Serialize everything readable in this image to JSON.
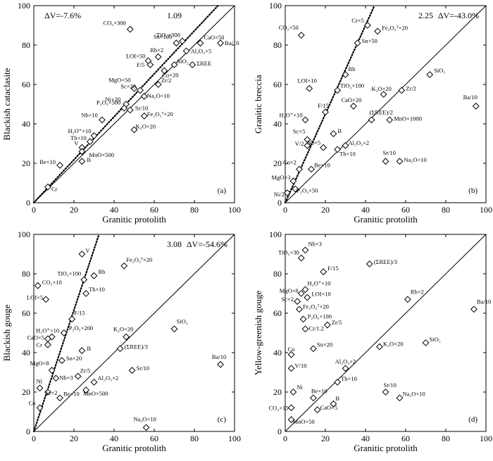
{
  "figure": {
    "axis_range": [
      0,
      100
    ],
    "ticks": [
      0,
      20,
      40,
      60,
      80,
      100
    ]
  },
  "chart_data": [
    {
      "type": "scatter",
      "tag": "(a)",
      "xlabel": "Granitic protolith",
      "ylabel": "Blackish cataclasite",
      "xlim": [
        0,
        100
      ],
      "ylim": [
        0,
        100
      ],
      "delta_v": "ΔV=-7.6%",
      "slope_label": "1.09",
      "isocon_slope": 1.09,
      "stat_pos": "top-left",
      "slope_pos": "top-center",
      "points": [
        {
          "x": 48,
          "y": 88,
          "label": "CO₂×300",
          "lx": -6,
          "ly": -6,
          "la": "end"
        },
        {
          "x": 74,
          "y": 82,
          "label": "TiO₂×300",
          "lx": -3,
          "ly": -6,
          "la": "end"
        },
        {
          "x": 71,
          "y": 81,
          "label": "Sn×100",
          "lx": -6,
          "ly": -6,
          "la": "end"
        },
        {
          "x": 83,
          "y": 81,
          "label": "CaO×50",
          "lx": 5,
          "ly": -5,
          "la": "start"
        },
        {
          "x": 93,
          "y": 81,
          "label": "Ba/10",
          "lx": 6,
          "ly": 3,
          "la": "start"
        },
        {
          "x": 76,
          "y": 77,
          "label": "Al₂O₃×5",
          "lx": 6,
          "ly": 3,
          "la": "start"
        },
        {
          "x": 62,
          "y": 74,
          "label": "Rb×2",
          "lx": -2,
          "ly": -7,
          "la": "middle"
        },
        {
          "x": 57,
          "y": 72,
          "label": "LOI×50",
          "lx": -4,
          "ly": -4,
          "la": "end"
        },
        {
          "x": 58,
          "y": 70,
          "label": "F/5",
          "lx": -8,
          "ly": 3,
          "la": "end"
        },
        {
          "x": 70,
          "y": 70,
          "label": "SiO₂",
          "lx": 4,
          "ly": -2,
          "la": "start"
        },
        {
          "x": 79,
          "y": 70,
          "label": "ΣREE",
          "lx": 6,
          "ly": 1,
          "la": "start"
        },
        {
          "x": 65,
          "y": 67,
          "label": "Co×20",
          "lx": -3,
          "ly": 9,
          "la": "start"
        },
        {
          "x": 50,
          "y": 58,
          "label": "MgO×50",
          "lx": -5,
          "ly": -9,
          "la": "end"
        },
        {
          "x": 53,
          "y": 57,
          "label": "Sc×20",
          "lx": -6,
          "ly": -3,
          "la": "end"
        },
        {
          "x": 62,
          "y": 60,
          "label": "Zr/2",
          "lx": 4,
          "ly": -3,
          "la": "start"
        },
        {
          "x": 55,
          "y": 54,
          "label": "Na₂O×10",
          "lx": 4,
          "ly": 2,
          "la": "start"
        },
        {
          "x": 46,
          "y": 50,
          "label": "Ni×20",
          "lx": -8,
          "ly": -4,
          "la": "end"
        },
        {
          "x": 45,
          "y": 48,
          "label": "P₂O₅×500",
          "lx": -5,
          "ly": -5,
          "la": "end"
        },
        {
          "x": 48,
          "y": 47,
          "label": "Sr/10",
          "lx": 7,
          "ly": 0,
          "la": "start"
        },
        {
          "x": 55,
          "y": 44,
          "label": "Fe₂O₃ᵀ×20",
          "lx": 4,
          "ly": 0,
          "la": "start"
        },
        {
          "x": 34,
          "y": 42,
          "label": "Nb×10",
          "lx": -6,
          "ly": -4,
          "la": "end"
        },
        {
          "x": 50,
          "y": 37,
          "label": "K₂O×20",
          "lx": 2,
          "ly": -2,
          "la": "start"
        },
        {
          "x": 30,
          "y": 34,
          "label": "H₂O⁺×10",
          "lx": -4,
          "ly": -4,
          "la": "end"
        },
        {
          "x": 28,
          "y": 31,
          "label": "Th×10",
          "lx": -5,
          "ly": -2,
          "la": "end"
        },
        {
          "x": 24,
          "y": 28,
          "label": "V",
          "lx": -5,
          "ly": -3,
          "la": "end"
        },
        {
          "x": 24,
          "y": 26,
          "label": "MnO×500",
          "lx": 10,
          "ly": 8,
          "la": "start"
        },
        {
          "x": 24,
          "y": 21,
          "label": "B",
          "lx": 7,
          "ly": 1,
          "la": "start"
        },
        {
          "x": 13,
          "y": 19,
          "label": "Be×10",
          "lx": -6,
          "ly": -2,
          "la": "end"
        },
        {
          "x": 7,
          "y": 8,
          "label": "Cr",
          "lx": 5,
          "ly": 6,
          "la": "start"
        }
      ]
    },
    {
      "type": "scatter",
      "tag": "(b)",
      "xlabel": "Granitic protolith",
      "ylabel": "Granitic breccia",
      "xlim": [
        0,
        100
      ],
      "ylim": [
        0,
        100
      ],
      "delta_v": "ΔV=-43.0%",
      "slope_label": "2.25",
      "isocon_slope": 2.25,
      "stat_pos": "top-right",
      "slope_pos": "top-center",
      "points": [
        {
          "x": 8,
          "y": 85,
          "label": "CO₂×50",
          "lx": -4,
          "ly": -8,
          "la": "end"
        },
        {
          "x": 41,
          "y": 90,
          "label": "Cr×5",
          "lx": -5,
          "ly": -4,
          "la": "end"
        },
        {
          "x": 46,
          "y": 87,
          "label": "Fe₂O₃ᵀ×20",
          "lx": 6,
          "ly": -2,
          "la": "start"
        },
        {
          "x": 36,
          "y": 81,
          "label": "Sn×50",
          "lx": 6,
          "ly": 0,
          "la": "start"
        },
        {
          "x": 30,
          "y": 65,
          "label": "Rb",
          "lx": 4,
          "ly": -5,
          "la": "start"
        },
        {
          "x": 12,
          "y": 58,
          "label": "LOI×10",
          "lx": -3,
          "ly": -8,
          "la": "middle"
        },
        {
          "x": 26,
          "y": 57,
          "label": "TiO₂×100",
          "lx": 4,
          "ly": -4,
          "la": "start"
        },
        {
          "x": 72,
          "y": 65,
          "label": "SiO₂",
          "lx": 6,
          "ly": -3,
          "la": "start"
        },
        {
          "x": 49,
          "y": 55,
          "label": "K₂O×20",
          "lx": -3,
          "ly": -5,
          "la": "middle"
        },
        {
          "x": 58,
          "y": 57,
          "label": "Zr/2",
          "lx": 6,
          "ly": 0,
          "la": "start"
        },
        {
          "x": 34,
          "y": 49,
          "label": "CaO×20",
          "lx": -3,
          "ly": -6,
          "la": "middle"
        },
        {
          "x": 20,
          "y": 46,
          "label": "F/15",
          "lx": -3,
          "ly": -6,
          "la": "middle"
        },
        {
          "x": 10,
          "y": 42,
          "label": "H₂O⁺×10",
          "lx": -4,
          "ly": -4,
          "la": "end"
        },
        {
          "x": 43,
          "y": 42,
          "label": "(ΣREE)/2",
          "lx": -3,
          "ly": -8,
          "la": "start"
        },
        {
          "x": 52,
          "y": 42,
          "label": "MnO×1000",
          "lx": 6,
          "ly": 1,
          "la": "start"
        },
        {
          "x": 95,
          "y": 49,
          "label": "Ba/10",
          "lx": -8,
          "ly": -10,
          "la": "middle"
        },
        {
          "x": 11,
          "y": 32,
          "label": "Sc×5",
          "lx": -3,
          "ly": -9,
          "la": "end"
        },
        {
          "x": 11,
          "y": 29,
          "label": "V/2",
          "lx": -5,
          "ly": 0,
          "la": "end"
        },
        {
          "x": 24,
          "y": 35,
          "label": "B",
          "lx": 6,
          "ly": -1,
          "la": "start"
        },
        {
          "x": 19,
          "y": 28,
          "label": "Nb×5",
          "lx": -4,
          "ly": -4,
          "la": "end"
        },
        {
          "x": 30,
          "y": 29,
          "label": "Al₂O₃×2",
          "lx": 4,
          "ly": -1,
          "la": "start"
        },
        {
          "x": 26,
          "y": 27,
          "label": "Th×10",
          "lx": 3,
          "ly": 9,
          "la": "start"
        },
        {
          "x": 13,
          "y": 17,
          "label": "Be×10",
          "lx": 4,
          "ly": -3,
          "la": "start"
        },
        {
          "x": 7,
          "y": 17,
          "label": "Co×2",
          "lx": -4,
          "ly": -7,
          "la": "end"
        },
        {
          "x": 50,
          "y": 21,
          "label": "Sr/10",
          "lx": -4,
          "ly": -9,
          "la": "start"
        },
        {
          "x": 57,
          "y": 21,
          "label": "Na₂O×10",
          "lx": 6,
          "ly": 1,
          "la": "start"
        },
        {
          "x": 4,
          "y": 11,
          "label": "MgO×3",
          "lx": -4,
          "ly": -2,
          "la": "end"
        },
        {
          "x": 5,
          "y": 7,
          "label": "P₂O₅×50",
          "lx": 2,
          "ly": 5,
          "la": "start"
        },
        {
          "x": 1,
          "y": 5,
          "label": "Ni/2",
          "lx": -4,
          "ly": 5,
          "la": "end"
        }
      ]
    },
    {
      "type": "scatter",
      "tag": "(c)",
      "xlabel": "Granitic protolith",
      "ylabel": "Blackish gouge",
      "xlim": [
        0,
        100
      ],
      "ylim": [
        0,
        100
      ],
      "delta_v": "ΔV=-54.6%",
      "slope_label": "3.08",
      "isocon_slope": 3.08,
      "stat_pos": "top-right",
      "slope_pos": "top-center",
      "points": [
        {
          "x": 24,
          "y": 90,
          "label": "V",
          "lx": 5,
          "ly": -2,
          "la": "start"
        },
        {
          "x": 45,
          "y": 84,
          "label": "Fe₂O₃ᵀ×20",
          "lx": 3,
          "ly": -6,
          "la": "start"
        },
        {
          "x": 25,
          "y": 77,
          "label": "TiO₂×100",
          "lx": -4,
          "ly": -6,
          "la": "end"
        },
        {
          "x": 30,
          "y": 79,
          "label": "Rb",
          "lx": 6,
          "ly": -3,
          "la": "start"
        },
        {
          "x": 2,
          "y": 74,
          "label": "CO₂×10",
          "lx": 6,
          "ly": -2,
          "la": "start"
        },
        {
          "x": 26,
          "y": 70,
          "label": "Th×10",
          "lx": 4,
          "ly": -3,
          "la": "start"
        },
        {
          "x": 6,
          "y": 67,
          "label": "LOI×5",
          "lx": -4,
          "ly": 0,
          "la": "end"
        },
        {
          "x": 19,
          "y": 57,
          "label": "F/15",
          "lx": 3,
          "ly": -6,
          "la": "start"
        },
        {
          "x": 15,
          "y": 50,
          "label": "P₂O₅×200",
          "lx": 7,
          "ly": -4,
          "la": "start"
        },
        {
          "x": 9,
          "y": 48,
          "label": "H₂O⁺×10",
          "lx": -6,
          "ly": -6,
          "la": "middle"
        },
        {
          "x": 7,
          "y": 47,
          "label": "CaO×5",
          "lx": -5,
          "ly": 1,
          "la": "end"
        },
        {
          "x": 7,
          "y": 44,
          "label": "Cr",
          "lx": -8,
          "ly": 3,
          "la": "end"
        },
        {
          "x": 46,
          "y": 48,
          "label": "K₂O×20",
          "lx": -4,
          "ly": -8,
          "la": "middle"
        },
        {
          "x": 70,
          "y": 52,
          "label": "SiO₂",
          "lx": 3,
          "ly": -8,
          "la": "start"
        },
        {
          "x": 24,
          "y": 41,
          "label": "B",
          "lx": 7,
          "ly": 0,
          "la": "start"
        },
        {
          "x": 43,
          "y": 42,
          "label": "(ΣREE)/3",
          "lx": 6,
          "ly": 0,
          "la": "start"
        },
        {
          "x": 14,
          "y": 36,
          "label": "Sn×20",
          "lx": 6,
          "ly": 0,
          "la": "start"
        },
        {
          "x": 93,
          "y": 34,
          "label": "Ba/10",
          "lx": -2,
          "ly": -8,
          "la": "middle"
        },
        {
          "x": 9,
          "y": 31,
          "label": "MgO×8",
          "lx": -4,
          "ly": -7,
          "la": "end"
        },
        {
          "x": 49,
          "y": 31,
          "label": "Sr/10",
          "lx": 6,
          "ly": 0,
          "la": "start"
        },
        {
          "x": 22,
          "y": 28,
          "label": "Zr/5",
          "lx": 3,
          "ly": -5,
          "la": "start"
        },
        {
          "x": 11,
          "y": 27,
          "label": "Nb×3",
          "lx": 5,
          "ly": 2,
          "la": "start"
        },
        {
          "x": 30,
          "y": 25,
          "label": "Al₂O₃×2",
          "lx": 5,
          "ly": -3,
          "la": "start"
        },
        {
          "x": 3,
          "y": 22,
          "label": "Ni",
          "lx": -5,
          "ly": -7,
          "la": "start"
        },
        {
          "x": 7,
          "y": 20,
          "label": "Sc×2",
          "lx": -4,
          "ly": 4,
          "la": "start"
        },
        {
          "x": 13,
          "y": 17,
          "label": "Be×10",
          "lx": 5,
          "ly": -3,
          "la": "start"
        },
        {
          "x": 26,
          "y": 21,
          "label": "MnO×500",
          "lx": -4,
          "ly": 8,
          "la": "start"
        },
        {
          "x": 3,
          "y": 12,
          "label": "Co",
          "lx": -6,
          "ly": -4,
          "la": "end"
        },
        {
          "x": 56,
          "y": 2,
          "label": "Na₂O×10",
          "lx": -2,
          "ly": -9,
          "la": "middle"
        }
      ]
    },
    {
      "type": "scatter",
      "tag": "(d)",
      "xlabel": "Granitic protolith",
      "ylabel": "Yellow-greenish gouge",
      "xlim": [
        0,
        100
      ],
      "ylim": [
        0,
        100
      ],
      "delta_v": "",
      "slope_label": "",
      "isocon_slope": null,
      "stat_pos": "top-right",
      "slope_pos": "top-center",
      "points": [
        {
          "x": 10,
          "y": 92,
          "label": "Nb×3",
          "lx": 4,
          "ly": -6,
          "la": "start"
        },
        {
          "x": 8,
          "y": 88,
          "label": "TiO₂×30",
          "lx": -3,
          "ly": -5,
          "la": "end"
        },
        {
          "x": 42,
          "y": 85,
          "label": "(ΣREE)/3",
          "lx": 6,
          "ly": 0,
          "la": "start"
        },
        {
          "x": 19,
          "y": 81,
          "label": "F/15",
          "lx": 6,
          "ly": -2,
          "la": "start"
        },
        {
          "x": 10,
          "y": 72,
          "label": "H₂O⁺×10",
          "lx": 3,
          "ly": -6,
          "la": "start"
        },
        {
          "x": 8,
          "y": 70,
          "label": "MgO×8",
          "lx": -4,
          "ly": -1,
          "la": "end"
        },
        {
          "x": 11,
          "y": 68,
          "label": "LOI×10",
          "lx": 6,
          "ly": -2,
          "la": "start"
        },
        {
          "x": 6,
          "y": 66,
          "label": "Sc×2",
          "lx": -5,
          "ly": 0,
          "la": "end"
        },
        {
          "x": 7,
          "y": 62,
          "label": "Fe₂O₃ᵀ×20",
          "lx": 5,
          "ly": -1,
          "la": "start"
        },
        {
          "x": 9,
          "y": 57,
          "label": "P₂O₅×100",
          "lx": 6,
          "ly": -1,
          "la": "start"
        },
        {
          "x": 61,
          "y": 67,
          "label": "Rb×2",
          "lx": 4,
          "ly": -8,
          "la": "start"
        },
        {
          "x": 94,
          "y": 62,
          "label": "Ba/10",
          "lx": 4,
          "ly": -8,
          "la": "start"
        },
        {
          "x": 10,
          "y": 52,
          "label": "Cr/1.2",
          "lx": 5,
          "ly": 2,
          "la": "start"
        },
        {
          "x": 21,
          "y": 54,
          "label": "Zr/5",
          "lx": 6,
          "ly": -1,
          "la": "start"
        },
        {
          "x": 14,
          "y": 42,
          "label": "Sn×20",
          "lx": 5,
          "ly": -3,
          "la": "start"
        },
        {
          "x": 47,
          "y": 43,
          "label": "K₂O×20",
          "lx": 5,
          "ly": -1,
          "la": "start"
        },
        {
          "x": 70,
          "y": 45,
          "label": "SiO₂",
          "lx": 5,
          "ly": -2,
          "la": "start"
        },
        {
          "x": 3,
          "y": 39,
          "label": "Co",
          "lx": -5,
          "ly": -5,
          "la": "start"
        },
        {
          "x": 3,
          "y": 32,
          "label": "V/10",
          "lx": 5,
          "ly": -1,
          "la": "start"
        },
        {
          "x": 30,
          "y": 32,
          "label": "Al₂O₃×2",
          "lx": 0,
          "ly": -7,
          "la": "middle"
        },
        {
          "x": 26,
          "y": 25,
          "label": "Th×10",
          "lx": 5,
          "ly": -2,
          "la": "start"
        },
        {
          "x": 4,
          "y": 20,
          "label": "Ni",
          "lx": 5,
          "ly": -4,
          "la": "start"
        },
        {
          "x": 14,
          "y": 17,
          "label": "Be×10",
          "lx": -3,
          "ly": -7,
          "la": "start"
        },
        {
          "x": 50,
          "y": 20,
          "label": "Sr/10",
          "lx": -3,
          "ly": -7,
          "la": "start"
        },
        {
          "x": 57,
          "y": 17,
          "label": "Na₂O×10",
          "lx": 4,
          "ly": -3,
          "la": "start"
        },
        {
          "x": 3,
          "y": 12,
          "label": "CO₂×15",
          "lx": -4,
          "ly": 3,
          "la": "end"
        },
        {
          "x": 24,
          "y": 14,
          "label": "B",
          "lx": 3,
          "ly": -5,
          "la": "start"
        },
        {
          "x": 16,
          "y": 11,
          "label": "CaO×5",
          "lx": 4,
          "ly": 0,
          "la": "start"
        },
        {
          "x": 3,
          "y": 6,
          "label": "MnO×50",
          "lx": 2,
          "ly": 6,
          "la": "start"
        }
      ]
    }
  ]
}
